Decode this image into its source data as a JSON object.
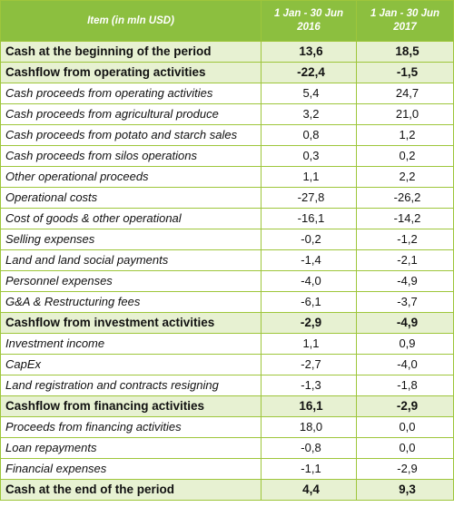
{
  "header": {
    "item": "Item  (in mln USD)",
    "col1": [
      "1 Jan - 30 Jun",
      "2016"
    ],
    "col2": [
      "1 Jan - 30 Jun",
      "2017"
    ]
  },
  "rows": [
    {
      "label": "Cash at the beginning of the period",
      "v2016": "13,6",
      "v2017": "18,5",
      "highlight": true
    },
    {
      "label": "Cashflow from operating activities",
      "v2016": "-22,4",
      "v2017": "-1,5",
      "highlight": true
    },
    {
      "label": "Cash proceeds from operating activities",
      "v2016": "5,4",
      "v2017": "24,7",
      "highlight": false
    },
    {
      "label": "Cash proceeds from agricultural produce",
      "v2016": "3,2",
      "v2017": "21,0",
      "highlight": false
    },
    {
      "label": "Cash proceeds from potato and starch sales",
      "v2016": "0,8",
      "v2017": "1,2",
      "highlight": false
    },
    {
      "label": "Cash proceeds from silos operations",
      "v2016": "0,3",
      "v2017": "0,2",
      "highlight": false
    },
    {
      "label": "Other operational proceeds",
      "v2016": "1,1",
      "v2017": "2,2",
      "highlight": false
    },
    {
      "label": "Operational costs",
      "v2016": "-27,8",
      "v2017": "-26,2",
      "highlight": false
    },
    {
      "label": "Cost of goods & other operational",
      "v2016": "-16,1",
      "v2017": "-14,2",
      "highlight": false
    },
    {
      "label": "Selling expenses",
      "v2016": "-0,2",
      "v2017": "-1,2",
      "highlight": false
    },
    {
      "label": "Land and land social payments",
      "v2016": "-1,4",
      "v2017": "-2,1",
      "highlight": false
    },
    {
      "label": "Personnel expenses",
      "v2016": "-4,0",
      "v2017": "-4,9",
      "highlight": false
    },
    {
      "label": "G&A & Restructuring fees",
      "v2016": "-6,1",
      "v2017": "-3,7",
      "highlight": false
    },
    {
      "label": "Cashflow from investment activities",
      "v2016": "-2,9",
      "v2017": "-4,9",
      "highlight": true
    },
    {
      "label": "Investment income",
      "v2016": "1,1",
      "v2017": "0,9",
      "highlight": false
    },
    {
      "label": "CapEx",
      "v2016": "-2,7",
      "v2017": "-4,0",
      "highlight": false
    },
    {
      "label": "Land registration and contracts resigning",
      "v2016": "-1,3",
      "v2017": "-1,8",
      "highlight": false
    },
    {
      "label": "Cashflow from financing activities",
      "v2016": "16,1",
      "v2017": "-2,9",
      "highlight": true
    },
    {
      "label": "Proceeds from financing activities",
      "v2016": "18,0",
      "v2017": "0,0",
      "highlight": false
    },
    {
      "label": "Loan repayments",
      "v2016": "-0,8",
      "v2017": "0,0",
      "highlight": false
    },
    {
      "label": "Financial expenses",
      "v2016": "-1,1",
      "v2017": "-2,9",
      "highlight": false
    },
    {
      "label": "Cash at the end of the period",
      "v2016": "4,4",
      "v2017": "9,3",
      "highlight": true
    }
  ]
}
